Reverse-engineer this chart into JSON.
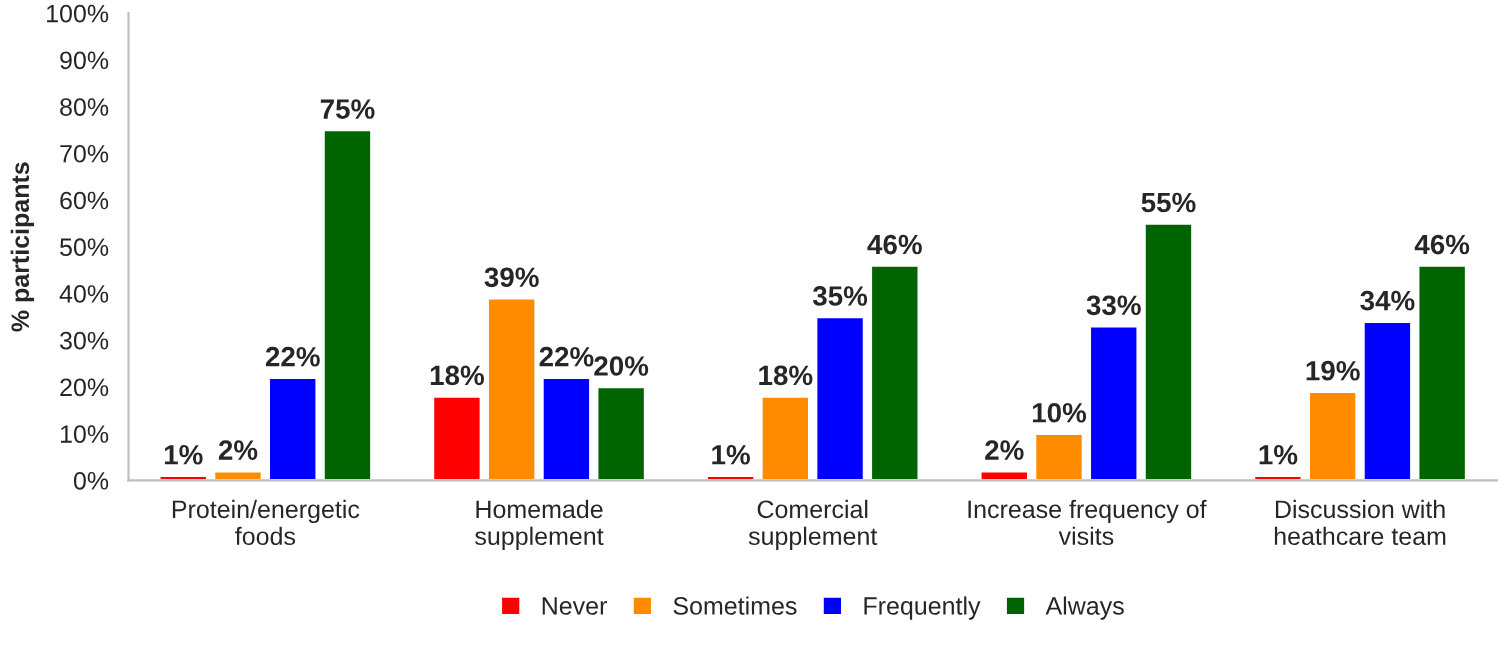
{
  "chart_data": {
    "type": "bar",
    "ylabel": "% participants",
    "categories": [
      "Protein/energetic\nfoods",
      "Homemade\nsupplement",
      "Comercial\nsupplement",
      "Increase frequency of\nvisits",
      "Discussion with\nheathcare team"
    ],
    "series": [
      {
        "name": "Never",
        "color": "#ff0000",
        "values": [
          1,
          18,
          1,
          2,
          1
        ],
        "value_labels": [
          "1%",
          "18%",
          "1%",
          "2%",
          "1%"
        ]
      },
      {
        "name": "Sometimes",
        "color": "#ff8c00",
        "values": [
          2,
          39,
          18,
          10,
          19
        ],
        "value_labels": [
          "2%",
          "39%",
          "18%",
          "10%",
          "19%"
        ]
      },
      {
        "name": "Frequently",
        "color": "#0000ff",
        "values": [
          22,
          22,
          35,
          33,
          34
        ],
        "value_labels": [
          "22%",
          "22%",
          "35%",
          "33%",
          "34%"
        ]
      },
      {
        "name": "Always",
        "color": "#006400",
        "values": [
          75,
          20,
          46,
          55,
          46
        ],
        "value_labels": [
          "75%",
          "20%",
          "46%",
          "55%",
          "46%"
        ]
      }
    ],
    "ylim": [
      0,
      100
    ],
    "yticks": [
      {
        "value": 0,
        "label": "0%"
      },
      {
        "value": 10,
        "label": "10%"
      },
      {
        "value": 20,
        "label": "20%"
      },
      {
        "value": 30,
        "label": "30%"
      },
      {
        "value": 40,
        "label": "40%"
      },
      {
        "value": 50,
        "label": "50%"
      },
      {
        "value": 60,
        "label": "60%"
      },
      {
        "value": 70,
        "label": "70%"
      },
      {
        "value": 80,
        "label": "80%"
      },
      {
        "value": 90,
        "label": "90%"
      },
      {
        "value": 100,
        "label": "100%"
      }
    ],
    "grid": false,
    "legend": "bottom"
  }
}
